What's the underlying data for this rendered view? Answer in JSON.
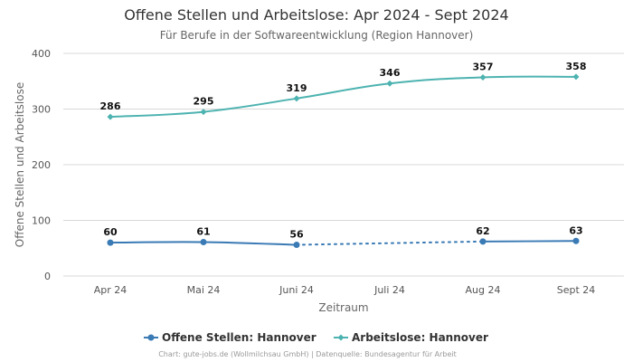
{
  "chart_data": {
    "type": "line",
    "title": "Offene Stellen und Arbeitslose: Apr 2024 - Sept 2024",
    "subtitle": "Für Berufe in der Softwareentwicklung (Region Hannover)",
    "xlabel": "Zeitraum",
    "ylabel": "Offene Stellen und Arbeitslose",
    "categories": [
      "Apr 24",
      "Mai 24",
      "Juni 24",
      "Juli 24",
      "Aug 24",
      "Sept 24"
    ],
    "ylim": [
      0,
      400
    ],
    "yticks": [
      0,
      100,
      200,
      300,
      400
    ],
    "grid": true,
    "legend_position": "bottom",
    "series": [
      {
        "name": "Offene Stellen: Hannover",
        "color": "#3a7ab5",
        "marker": "circle",
        "values": [
          60,
          61,
          56,
          null,
          62,
          63
        ],
        "data_labels": [
          "60",
          "61",
          "56",
          "",
          "62",
          "63"
        ],
        "gap_style": "dotted"
      },
      {
        "name": "Arbeitslose: Hannover",
        "color": "#4db3b0",
        "marker": "diamond",
        "values": [
          286,
          295,
          319,
          346,
          357,
          358
        ],
        "data_labels": [
          "286",
          "295",
          "319",
          "346",
          "357",
          "358"
        ]
      }
    ],
    "credit": "Chart: gute-jobs.de (Wollmilchsau GmbH) | Datenquelle: Bundesagentur für Arbeit"
  }
}
